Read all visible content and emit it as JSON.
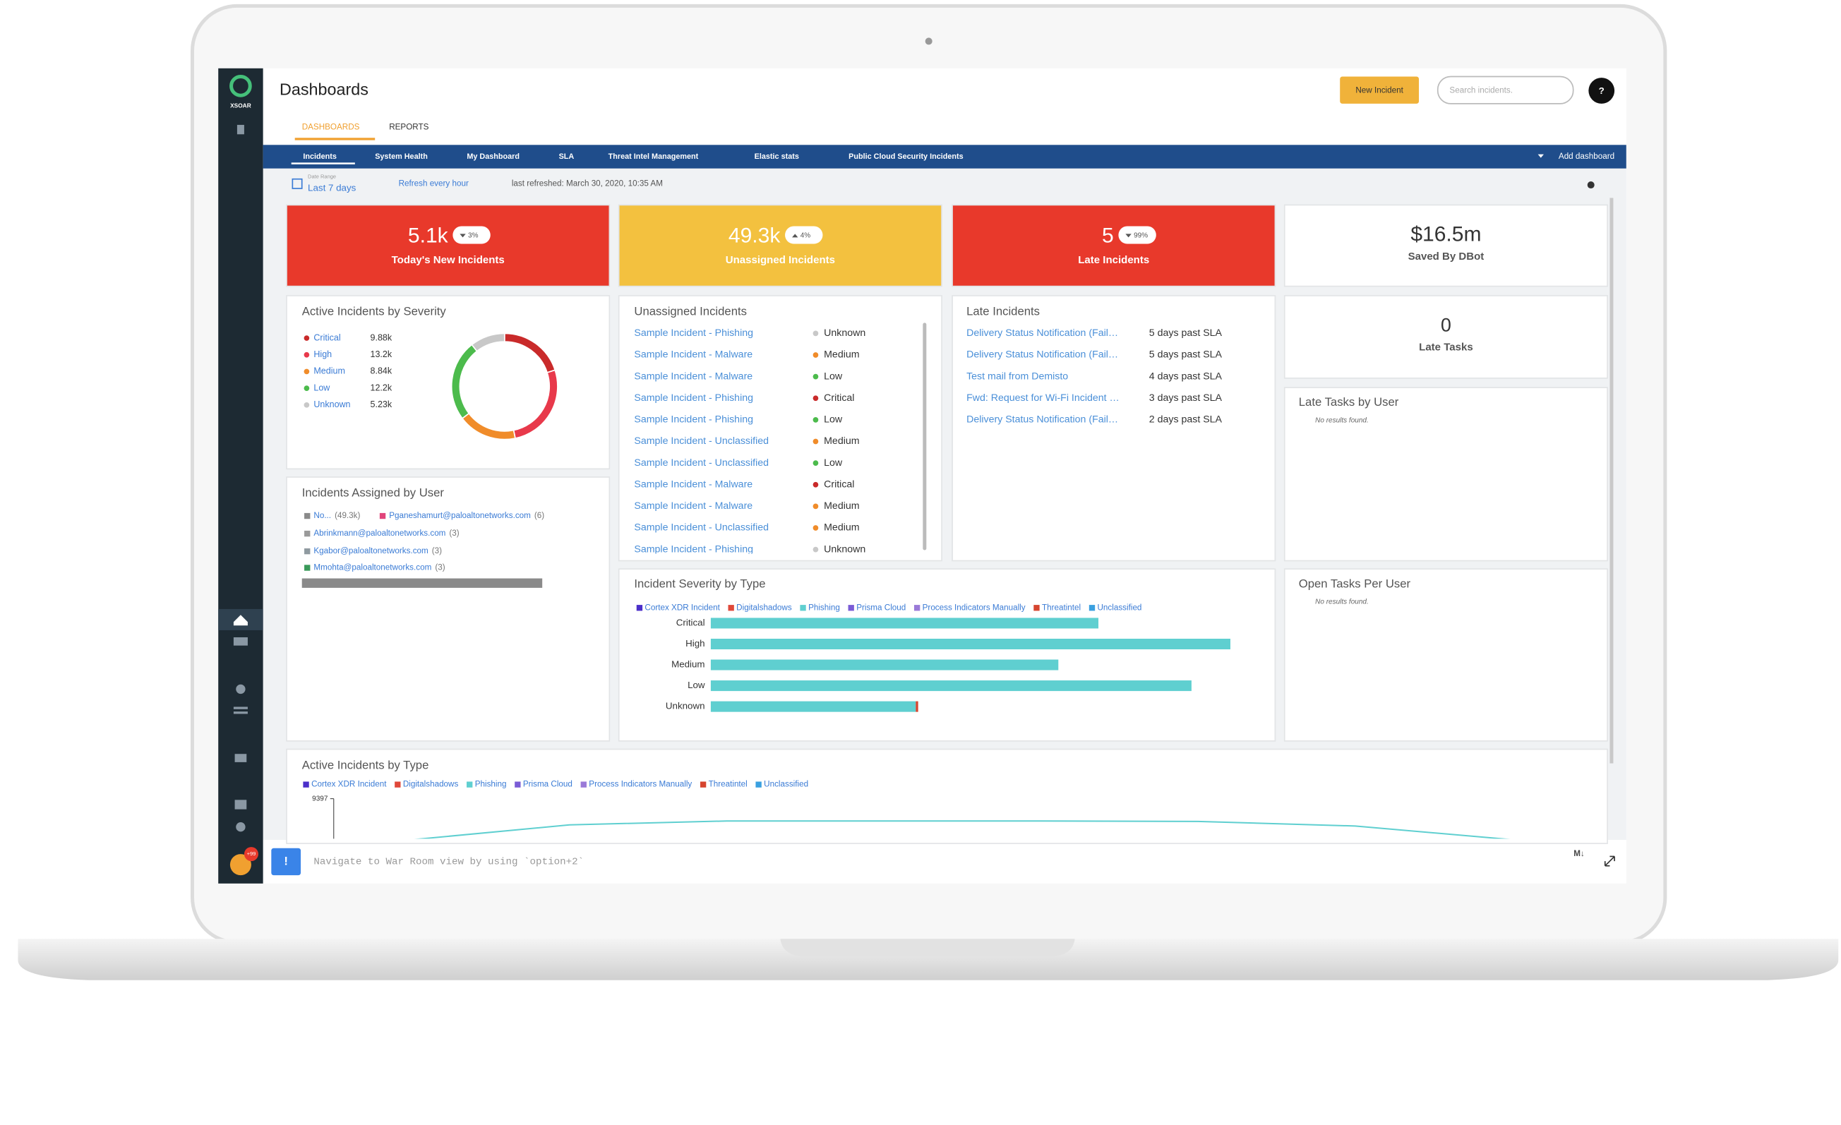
{
  "header": {
    "title": "Dashboards",
    "new_incident": "New Incident",
    "search_placeholder": "Search incidents.",
    "help": "?"
  },
  "sidebar": {
    "logo": "XSOAR",
    "badge": "+99"
  },
  "tabs": [
    "DASHBOARDS",
    "REPORTS"
  ],
  "dashboard_tabs": [
    "Incidents",
    "System Health",
    "My Dashboard",
    "SLA",
    "Threat Intel Management",
    "Elastic stats",
    "Public Cloud Security Incidents"
  ],
  "add_dashboard": "Add dashboard",
  "toolbar": {
    "date_range_label": "Date Range",
    "date_range": "Last 7 days",
    "refresh": "Refresh every hour",
    "last_refreshed": "last refreshed: March 30, 2020, 10:35 AM"
  },
  "stats": [
    {
      "value": "5.1k",
      "change": "3%",
      "direction": "down",
      "label": "Today's New Incidents",
      "color": "#e8392b"
    },
    {
      "value": "49.3k",
      "change": "4%",
      "direction": "up",
      "label": "Unassigned Incidents",
      "color": "#f3c13f"
    },
    {
      "value": "5",
      "change": "99%",
      "direction": "down",
      "label": "Late Incidents",
      "color": "#e8392b"
    },
    {
      "value": "$16.5m",
      "label": "Saved By DBot",
      "color": "#ffffff"
    }
  ],
  "late_tasks": {
    "value": "0",
    "label": "Late Tasks"
  },
  "unassigned": {
    "title": "Unassigned Incidents",
    "rows": [
      [
        "Sample Incident - Phishing",
        "Unknown"
      ],
      [
        "Sample Incident - Malware",
        "Medium"
      ],
      [
        "Sample Incident - Malware",
        "Low"
      ],
      [
        "Sample Incident - Phishing",
        "Critical"
      ],
      [
        "Sample Incident - Phishing",
        "Low"
      ],
      [
        "Sample Incident - Unclassified",
        "Medium"
      ],
      [
        "Sample Incident - Unclassified",
        "Low"
      ],
      [
        "Sample Incident - Malware",
        "Critical"
      ],
      [
        "Sample Incident - Malware",
        "Medium"
      ],
      [
        "Sample Incident - Unclassified",
        "Medium"
      ],
      [
        "Sample Incident - Phishing",
        "Unknown"
      ]
    ]
  },
  "late_incidents": {
    "title": "Late Incidents",
    "rows": [
      [
        "Delivery Status Notification (Fail…",
        "5 days past SLA"
      ],
      [
        "Delivery Status Notification (Fail…",
        "5 days past SLA"
      ],
      [
        "Test mail from Demisto",
        "4 days past SLA"
      ],
      [
        "Fwd: Request for Wi-Fi Incident …",
        "3 days past SLA"
      ],
      [
        "Delivery Status Notification (Fail…",
        "2 days past SLA"
      ]
    ]
  },
  "late_tasks_by_user": {
    "title": "Late Tasks by User",
    "empty": "No results found."
  },
  "open_tasks": {
    "title": "Open Tasks Per User",
    "empty": "No results found."
  },
  "war_room": {
    "icon": "!",
    "placeholder": "Navigate to War Room view by using `option+2`",
    "markdown": "M↓"
  },
  "chart_data": [
    {
      "type": "pie",
      "title": "Active Incidents by Severity",
      "categories": [
        "Critical",
        "High",
        "Medium",
        "Low",
        "Unknown"
      ],
      "values": [
        9880,
        13200,
        8840,
        12200,
        5230
      ],
      "value_labels": [
        "9.88k",
        "13.2k",
        "8.84k",
        "12.2k",
        "5.23k"
      ],
      "colors": [
        "#c92a2a",
        "#e8394b",
        "#f08c2a",
        "#4cbb4c",
        "#c8c8c8"
      ]
    },
    {
      "type": "stacked-bar",
      "title": "Incidents Assigned by User",
      "categories": [
        "No...",
        "Pganeshamurt@paloaltonetworks.com",
        "Abrinkmann@paloaltonetworks.com",
        "Kgabor@paloaltonetworks.com",
        "Mmohta@paloaltonetworks.com"
      ],
      "values": [
        49300,
        6,
        3,
        3,
        3
      ],
      "value_labels": [
        "(49.3k)",
        "(6)",
        "(3)",
        "(3)",
        "(3)"
      ],
      "colors": [
        "#8a8a8a",
        "#e0457b",
        "#9a9a9a",
        "#8f9aa0",
        "#3a9a5a"
      ]
    },
    {
      "type": "hbar",
      "title": "Incident Severity by Type",
      "categories": [
        "Critical",
        "High",
        "Medium",
        "Low",
        "Unknown"
      ],
      "series": [
        {
          "name": "Cortex XDR Incident",
          "color": "#4b2fc9",
          "values": [
            null,
            null,
            null,
            null,
            null
          ]
        },
        {
          "name": "Digitalshadows",
          "color": "#e0483a",
          "values": [
            null,
            null,
            null,
            null,
            null
          ]
        },
        {
          "name": "Phishing",
          "color": "#5fcfd0",
          "values": [
            329,
            441,
            295,
            408,
            174
          ]
        },
        {
          "name": "Prisma Cloud",
          "color": "#7a5cd6",
          "values": [
            null,
            null,
            null,
            null,
            null
          ]
        },
        {
          "name": "Process Indicators Manually",
          "color": "#9a7ad8",
          "values": [
            null,
            null,
            null,
            null,
            null
          ]
        },
        {
          "name": "Threatintel",
          "color": "#d6452f",
          "values": [
            null,
            null,
            null,
            null,
            2
          ]
        },
        {
          "name": "Unclassified",
          "color": "#3aa0e0",
          "values": [
            null,
            null,
            null,
            null,
            null
          ]
        }
      ]
    },
    {
      "type": "line",
      "title": "Active Incidents by Type",
      "categories": [
        null,
        null,
        null,
        null,
        null,
        null,
        null,
        null
      ],
      "ylim": [
        0,
        9397
      ],
      "yticks": [
        9397
      ],
      "series": [
        {
          "name": "Cortex XDR Incident",
          "color": "#4b2fc9",
          "values": [
            null,
            null,
            null,
            null,
            null,
            null,
            null,
            null
          ]
        },
        {
          "name": "Digitalshadows",
          "color": "#e0483a",
          "values": [
            null,
            null,
            null,
            null,
            null,
            null,
            null,
            null
          ]
        },
        {
          "name": "Phishing",
          "color": "#5fcfd0",
          "values": [
            7600,
            8250,
            8420,
            8420,
            8420,
            8400,
            8200,
            7600
          ]
        },
        {
          "name": "Prisma Cloud",
          "color": "#7a5cd6",
          "values": [
            null,
            null,
            null,
            null,
            null,
            null,
            null,
            null
          ]
        },
        {
          "name": "Process Indicators Manually",
          "color": "#9a7ad8",
          "values": [
            null,
            null,
            null,
            null,
            null,
            null,
            null,
            null
          ]
        },
        {
          "name": "Threatintel",
          "color": "#d6452f",
          "values": [
            null,
            null,
            null,
            null,
            null,
            null,
            null,
            null
          ]
        },
        {
          "name": "Unclassified",
          "color": "#3aa0e0",
          "values": [
            null,
            null,
            null,
            null,
            null,
            null,
            null,
            null
          ]
        }
      ]
    }
  ]
}
